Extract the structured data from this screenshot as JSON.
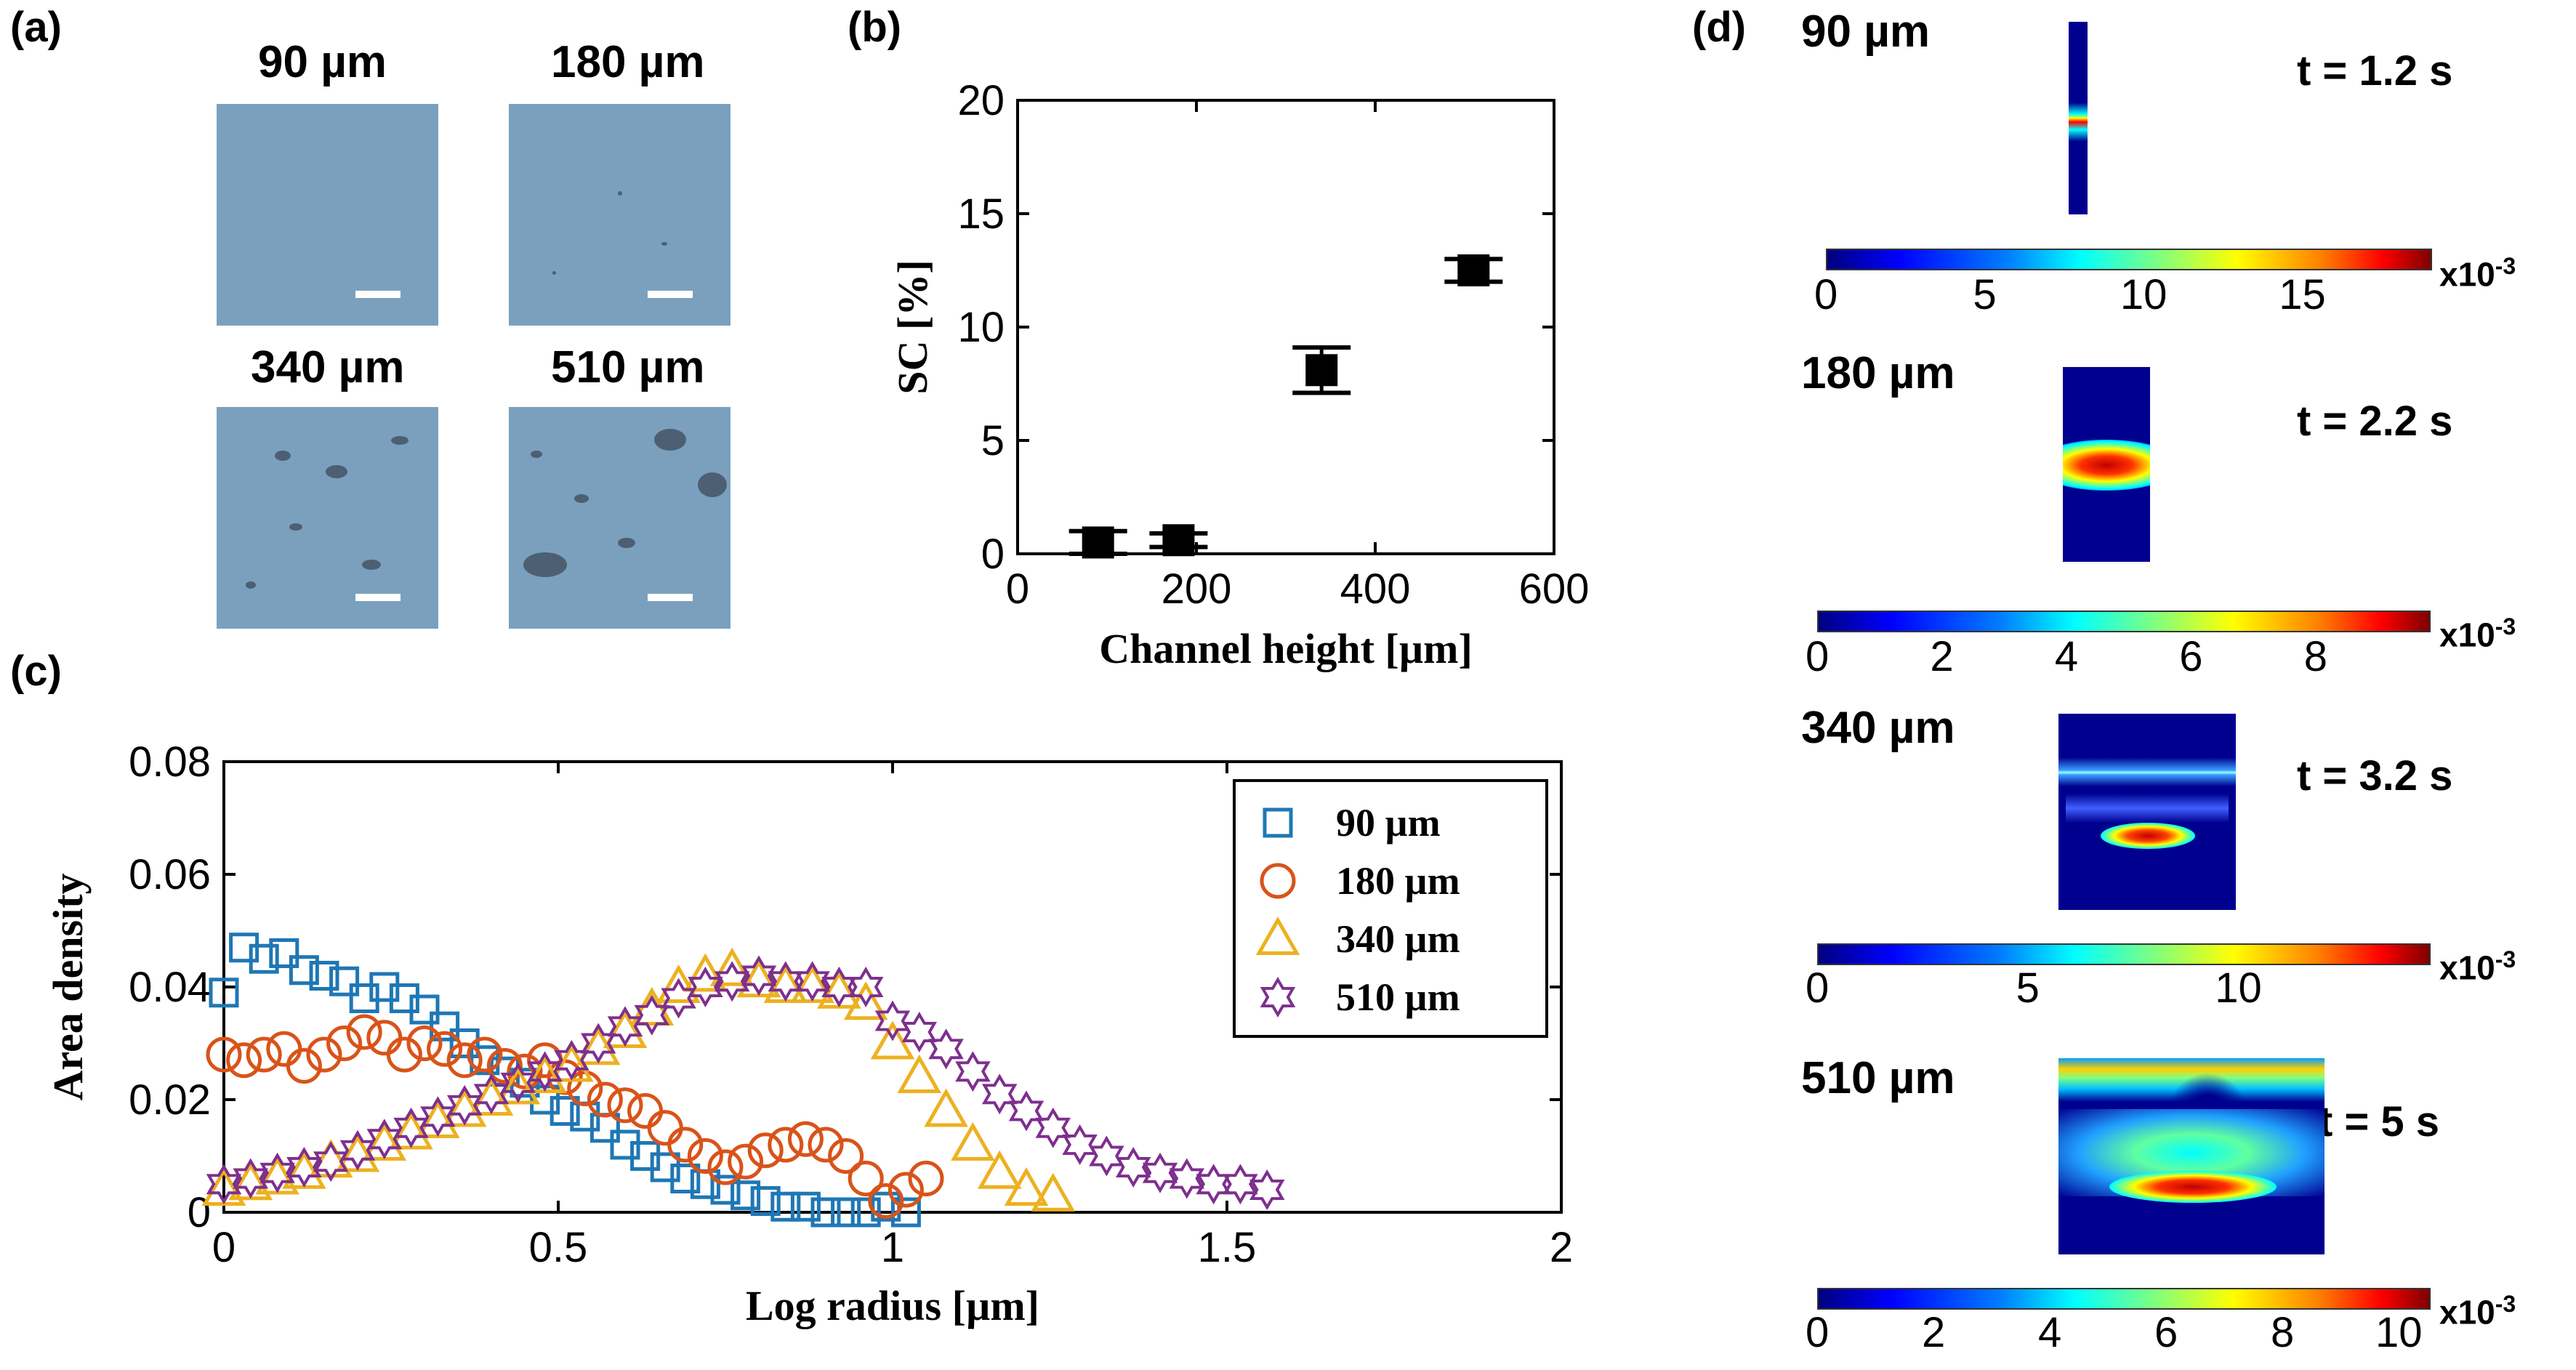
{
  "panel_labels": {
    "a": "(a)",
    "b": "(b)",
    "c": "(c)",
    "d": "(d)"
  },
  "panel_a": {
    "images": [
      {
        "label": "90 µm"
      },
      {
        "label": "180 µm"
      },
      {
        "label": "340 µm"
      },
      {
        "label": "510 µm"
      }
    ]
  },
  "panel_d": {
    "rows": [
      {
        "label": "90 µm",
        "time": "t = 1.2 s",
        "ticks": [
          "0",
          "5",
          "10",
          "15"
        ],
        "exponent": "x10",
        "exp_power": "-3"
      },
      {
        "label": "180 µm",
        "time": "t = 2.2 s",
        "ticks": [
          "0",
          "2",
          "4",
          "6",
          "8"
        ],
        "exponent": "x10",
        "exp_power": "-3"
      },
      {
        "label": "340 µm",
        "time": "t = 3.2 s",
        "ticks": [
          "0",
          "5",
          "10"
        ],
        "exponent": "x10",
        "exp_power": "-3"
      },
      {
        "label": "510 µm",
        "time": "t = 5 s",
        "ticks": [
          "0",
          "2",
          "4",
          "6",
          "8",
          "10"
        ],
        "exponent": "x10",
        "exp_power": "-3"
      }
    ]
  },
  "chart_data": [
    {
      "type": "scatter",
      "title": "",
      "xlabel": "Channel height [µm]",
      "ylabel": "SC [%]",
      "xlim": [
        0,
        600
      ],
      "ylim": [
        0,
        20
      ],
      "xticks": [
        "0",
        "200",
        "400",
        "600"
      ],
      "yticks": [
        "0",
        "5",
        "10",
        "15",
        "20"
      ],
      "x": [
        90,
        180,
        340,
        510
      ],
      "values": [
        0.5,
        0.6,
        8.1,
        12.5
      ],
      "errors": [
        0.5,
        0.3,
        1.0,
        0.5
      ]
    },
    {
      "type": "scatter",
      "title": "",
      "xlabel": "Log radius [µm]",
      "ylabel": "Area density",
      "xlim": [
        0,
        2
      ],
      "ylim": [
        0,
        0.08
      ],
      "xticks": [
        "0",
        "0.5",
        "1",
        "1.5",
        "2"
      ],
      "yticks": [
        "0",
        "0.02",
        "0.04",
        "0.06",
        "0.08"
      ],
      "legend_position": "top-right",
      "series": [
        {
          "name": "90 µm",
          "color": "#1f77b4",
          "marker": "square",
          "x": [
            0.0,
            0.03,
            0.06,
            0.09,
            0.12,
            0.15,
            0.18,
            0.21,
            0.24,
            0.27,
            0.3,
            0.33,
            0.36,
            0.39,
            0.42,
            0.45,
            0.48,
            0.51,
            0.54,
            0.57,
            0.6,
            0.63,
            0.66,
            0.69,
            0.72,
            0.75,
            0.78,
            0.81,
            0.84,
            0.87,
            0.9,
            0.93,
            0.96,
            0.99,
            1.02
          ],
          "y": [
            0.039,
            0.047,
            0.045,
            0.046,
            0.043,
            0.042,
            0.041,
            0.038,
            0.04,
            0.038,
            0.036,
            0.033,
            0.03,
            0.027,
            0.025,
            0.023,
            0.02,
            0.018,
            0.017,
            0.015,
            0.012,
            0.01,
            0.008,
            0.006,
            0.005,
            0.004,
            0.003,
            0.002,
            0.001,
            0.001,
            0.0,
            0.0,
            0.0,
            0.001,
            0.0
          ]
        },
        {
          "name": "180 µm",
          "color": "#d95319",
          "marker": "circle",
          "x": [
            0.0,
            0.03,
            0.06,
            0.09,
            0.12,
            0.15,
            0.18,
            0.21,
            0.24,
            0.27,
            0.3,
            0.33,
            0.36,
            0.39,
            0.42,
            0.45,
            0.48,
            0.51,
            0.54,
            0.57,
            0.6,
            0.63,
            0.66,
            0.69,
            0.72,
            0.75,
            0.78,
            0.81,
            0.84,
            0.87,
            0.9,
            0.93,
            0.96,
            0.99,
            1.02,
            1.05
          ],
          "y": [
            0.028,
            0.027,
            0.028,
            0.029,
            0.026,
            0.028,
            0.03,
            0.032,
            0.031,
            0.028,
            0.03,
            0.029,
            0.027,
            0.028,
            0.026,
            0.025,
            0.027,
            0.024,
            0.022,
            0.02,
            0.019,
            0.018,
            0.015,
            0.012,
            0.01,
            0.008,
            0.009,
            0.011,
            0.012,
            0.013,
            0.012,
            0.01,
            0.006,
            0.002,
            0.004,
            0.006
          ]
        },
        {
          "name": "340 µm",
          "color": "#edb120",
          "marker": "triangle",
          "x": [
            0.0,
            0.04,
            0.08,
            0.12,
            0.16,
            0.2,
            0.24,
            0.28,
            0.32,
            0.36,
            0.4,
            0.44,
            0.48,
            0.52,
            0.56,
            0.6,
            0.64,
            0.68,
            0.72,
            0.76,
            0.8,
            0.84,
            0.88,
            0.92,
            0.96,
            1.0,
            1.04,
            1.08,
            1.12,
            1.16,
            1.2,
            1.24
          ],
          "y": [
            0.004,
            0.005,
            0.006,
            0.007,
            0.009,
            0.01,
            0.012,
            0.014,
            0.016,
            0.018,
            0.02,
            0.022,
            0.024,
            0.026,
            0.029,
            0.032,
            0.036,
            0.04,
            0.042,
            0.043,
            0.041,
            0.04,
            0.04,
            0.039,
            0.037,
            0.03,
            0.024,
            0.018,
            0.012,
            0.007,
            0.004,
            0.003
          ]
        },
        {
          "name": "510 µm",
          "color": "#7e2f8e",
          "marker": "hexagram",
          "x": [
            0.0,
            0.04,
            0.08,
            0.12,
            0.16,
            0.2,
            0.24,
            0.28,
            0.32,
            0.36,
            0.4,
            0.44,
            0.48,
            0.52,
            0.56,
            0.6,
            0.64,
            0.68,
            0.72,
            0.76,
            0.8,
            0.84,
            0.88,
            0.92,
            0.96,
            1.0,
            1.04,
            1.08,
            1.12,
            1.16,
            1.2,
            1.24,
            1.28,
            1.32,
            1.36,
            1.4,
            1.44,
            1.48,
            1.52,
            1.56
          ],
          "y": [
            0.005,
            0.006,
            0.007,
            0.008,
            0.009,
            0.011,
            0.013,
            0.015,
            0.017,
            0.019,
            0.021,
            0.023,
            0.025,
            0.027,
            0.03,
            0.033,
            0.035,
            0.038,
            0.04,
            0.041,
            0.042,
            0.041,
            0.041,
            0.04,
            0.04,
            0.034,
            0.032,
            0.029,
            0.025,
            0.021,
            0.018,
            0.015,
            0.012,
            0.01,
            0.008,
            0.007,
            0.006,
            0.005,
            0.005,
            0.004
          ]
        }
      ]
    }
  ]
}
